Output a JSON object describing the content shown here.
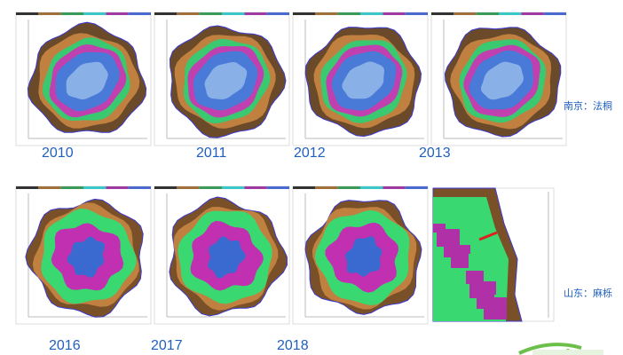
{
  "top_row": {
    "years": [
      "2010",
      "2011",
      "2012",
      "2013"
    ],
    "label": "南京：法桐"
  },
  "bottom_row": {
    "years": [
      "2016",
      "2017",
      "2018"
    ],
    "label": "山东：麻栎"
  }
}
